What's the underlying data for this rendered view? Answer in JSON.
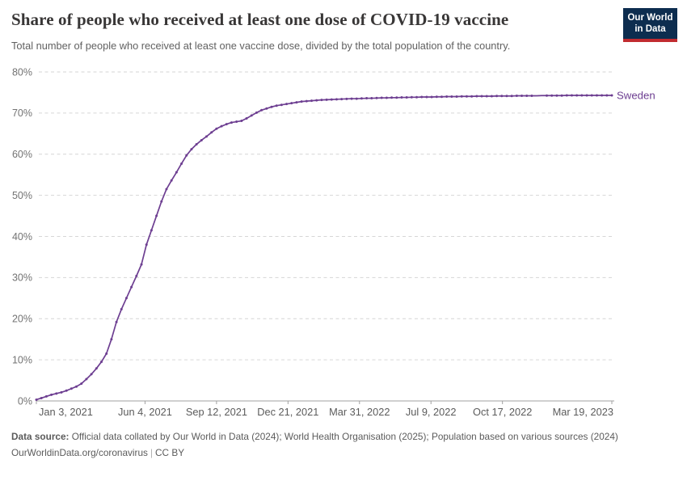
{
  "header": {
    "logo": {
      "line1": "Our World",
      "line2": "in Data"
    }
  },
  "colors": {
    "line": "#6d3e91",
    "logo_navy": "#0d2d4f",
    "logo_red": "#c12b30",
    "gridline": "#d6d6d6",
    "axis": "#a0a0a0"
  },
  "chart_data": {
    "type": "line",
    "title": "Share of people who received at least one dose of COVID-19 vaccine",
    "subtitle": "Total number of people who received at least one vaccine dose, divided by the total population of the country.",
    "xlabel": "",
    "ylabel": "",
    "ylim": [
      0,
      80
    ],
    "grid": "horizontal-dashed",
    "legend_position": "end-of-line-label",
    "x_range": [
      "2021-01-03",
      "2023-03-19"
    ],
    "y_ticks": [
      {
        "value": 0,
        "label": "0%"
      },
      {
        "value": 10,
        "label": "10%"
      },
      {
        "value": 20,
        "label": "20%"
      },
      {
        "value": 30,
        "label": "30%"
      },
      {
        "value": 40,
        "label": "40%"
      },
      {
        "value": 50,
        "label": "50%"
      },
      {
        "value": 60,
        "label": "60%"
      },
      {
        "value": 70,
        "label": "70%"
      },
      {
        "value": 80,
        "label": "80%"
      }
    ],
    "x_ticks": [
      {
        "date": "2021-01-03",
        "label": "Jan 3, 2021"
      },
      {
        "date": "2021-06-04",
        "label": "Jun 4, 2021"
      },
      {
        "date": "2021-09-12",
        "label": "Sep 12, 2021"
      },
      {
        "date": "2021-12-21",
        "label": "Dec 21, 2021"
      },
      {
        "date": "2022-03-31",
        "label": "Mar 31, 2022"
      },
      {
        "date": "2022-07-09",
        "label": "Jul 9, 2022"
      },
      {
        "date": "2022-10-17",
        "label": "Oct 17, 2022"
      },
      {
        "date": "2023-03-19",
        "label": "Mar 19, 2023"
      }
    ],
    "series": [
      {
        "name": "Sweden",
        "color": "#6d3e91",
        "unit": "%",
        "no_marker_dates": [
          "2022-12-04",
          "2022-12-11"
        ],
        "points": [
          [
            "2021-01-03",
            0.3
          ],
          [
            "2021-01-10",
            0.7
          ],
          [
            "2021-01-17",
            1.1
          ],
          [
            "2021-01-24",
            1.5
          ],
          [
            "2021-01-31",
            1.8
          ],
          [
            "2021-02-07",
            2.1
          ],
          [
            "2021-02-14",
            2.5
          ],
          [
            "2021-02-21",
            3.0
          ],
          [
            "2021-02-28",
            3.5
          ],
          [
            "2021-03-07",
            4.2
          ],
          [
            "2021-03-14",
            5.3
          ],
          [
            "2021-03-21",
            6.5
          ],
          [
            "2021-03-28",
            7.9
          ],
          [
            "2021-04-04",
            9.5
          ],
          [
            "2021-04-11",
            11.5
          ],
          [
            "2021-04-18",
            15.0
          ],
          [
            "2021-04-25",
            19.2
          ],
          [
            "2021-05-02",
            22.3
          ],
          [
            "2021-05-09",
            25.0
          ],
          [
            "2021-05-16",
            27.7
          ],
          [
            "2021-05-23",
            30.4
          ],
          [
            "2021-05-30",
            33.2
          ],
          [
            "2021-06-06",
            38.0
          ],
          [
            "2021-06-13",
            41.5
          ],
          [
            "2021-06-20",
            45.0
          ],
          [
            "2021-06-27",
            48.5
          ],
          [
            "2021-07-04",
            51.5
          ],
          [
            "2021-07-11",
            53.6
          ],
          [
            "2021-07-18",
            55.6
          ],
          [
            "2021-07-25",
            57.7
          ],
          [
            "2021-08-01",
            59.7
          ],
          [
            "2021-08-08",
            61.2
          ],
          [
            "2021-08-15",
            62.4
          ],
          [
            "2021-08-22",
            63.4
          ],
          [
            "2021-08-29",
            64.3
          ],
          [
            "2021-09-05",
            65.3
          ],
          [
            "2021-09-12",
            66.2
          ],
          [
            "2021-09-19",
            66.8
          ],
          [
            "2021-09-26",
            67.3
          ],
          [
            "2021-10-03",
            67.7
          ],
          [
            "2021-10-10",
            67.9
          ],
          [
            "2021-10-17",
            68.1
          ],
          [
            "2021-10-24",
            68.7
          ],
          [
            "2021-10-31",
            69.4
          ],
          [
            "2021-11-07",
            70.1
          ],
          [
            "2021-11-14",
            70.7
          ],
          [
            "2021-11-21",
            71.1
          ],
          [
            "2021-11-28",
            71.5
          ],
          [
            "2021-12-05",
            71.8
          ],
          [
            "2021-12-12",
            72.0
          ],
          [
            "2021-12-19",
            72.2
          ],
          [
            "2021-12-26",
            72.4
          ],
          [
            "2022-01-02",
            72.6
          ],
          [
            "2022-01-09",
            72.8
          ],
          [
            "2022-01-16",
            72.9
          ],
          [
            "2022-01-23",
            73.0
          ],
          [
            "2022-01-30",
            73.1
          ],
          [
            "2022-02-06",
            73.2
          ],
          [
            "2022-02-13",
            73.25
          ],
          [
            "2022-02-20",
            73.3
          ],
          [
            "2022-02-27",
            73.35
          ],
          [
            "2022-03-06",
            73.4
          ],
          [
            "2022-03-13",
            73.45
          ],
          [
            "2022-03-20",
            73.5
          ],
          [
            "2022-03-27",
            73.5
          ],
          [
            "2022-04-03",
            73.55
          ],
          [
            "2022-04-10",
            73.6
          ],
          [
            "2022-04-17",
            73.6
          ],
          [
            "2022-04-24",
            73.65
          ],
          [
            "2022-05-01",
            73.7
          ],
          [
            "2022-05-08",
            73.7
          ],
          [
            "2022-05-15",
            73.75
          ],
          [
            "2022-05-22",
            73.75
          ],
          [
            "2022-05-29",
            73.8
          ],
          [
            "2022-06-05",
            73.8
          ],
          [
            "2022-06-12",
            73.85
          ],
          [
            "2022-06-19",
            73.85
          ],
          [
            "2022-06-26",
            73.9
          ],
          [
            "2022-07-03",
            73.9
          ],
          [
            "2022-07-10",
            73.9
          ],
          [
            "2022-07-17",
            73.95
          ],
          [
            "2022-07-24",
            73.95
          ],
          [
            "2022-07-31",
            74.0
          ],
          [
            "2022-08-07",
            74.0
          ],
          [
            "2022-08-14",
            74.0
          ],
          [
            "2022-08-21",
            74.05
          ],
          [
            "2022-08-28",
            74.05
          ],
          [
            "2022-09-04",
            74.05
          ],
          [
            "2022-09-11",
            74.1
          ],
          [
            "2022-09-18",
            74.1
          ],
          [
            "2022-09-25",
            74.1
          ],
          [
            "2022-10-02",
            74.1
          ],
          [
            "2022-10-09",
            74.15
          ],
          [
            "2022-10-16",
            74.15
          ],
          [
            "2022-10-23",
            74.15
          ],
          [
            "2022-10-30",
            74.15
          ],
          [
            "2022-11-06",
            74.2
          ],
          [
            "2022-11-13",
            74.2
          ],
          [
            "2022-11-20",
            74.2
          ],
          [
            "2022-11-27",
            74.2
          ],
          [
            "2022-12-04",
            74.2
          ],
          [
            "2022-12-11",
            74.25
          ],
          [
            "2022-12-18",
            74.25
          ],
          [
            "2022-12-25",
            74.25
          ],
          [
            "2023-01-01",
            74.25
          ],
          [
            "2023-01-08",
            74.25
          ],
          [
            "2023-01-15",
            74.3
          ],
          [
            "2023-01-22",
            74.3
          ],
          [
            "2023-01-29",
            74.3
          ],
          [
            "2023-02-05",
            74.3
          ],
          [
            "2023-02-12",
            74.3
          ],
          [
            "2023-02-19",
            74.3
          ],
          [
            "2023-02-26",
            74.3
          ],
          [
            "2023-03-05",
            74.3
          ],
          [
            "2023-03-12",
            74.3
          ],
          [
            "2023-03-19",
            74.3
          ]
        ]
      }
    ]
  },
  "footer": {
    "source_label": "Data source:",
    "source_text": " Official data collated by Our World in Data (2024); World Health Organisation (2025); Population based on various sources (2024)",
    "link": "OurWorldinData.org/coronavirus",
    "separator": "|",
    "license": "CC BY"
  }
}
